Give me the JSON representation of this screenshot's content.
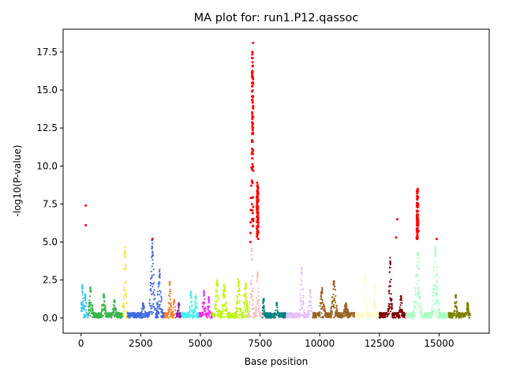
{
  "chart_data": {
    "type": "scatter",
    "title": "MA plot for: run1.P12.qassoc",
    "xlabel": "Base position",
    "ylabel": "-log10(P-value)",
    "xlim": [
      -750,
      17100
    ],
    "ylim": [
      -1.0,
      19.0
    ],
    "xticks": [
      0,
      2500,
      5000,
      7500,
      10000,
      12500,
      15000
    ],
    "xtick_labels": [
      "0",
      "2500",
      "5000",
      "7500",
      "10000",
      "12500",
      "15000"
    ],
    "yticks": [
      0.0,
      2.5,
      5.0,
      7.5,
      10.0,
      12.5,
      15.0,
      17.5
    ],
    "ytick_labels": [
      "0.0",
      "2.5",
      "5.0",
      "7.5",
      "10.0",
      "12.5",
      "15.0",
      "17.5"
    ],
    "grid": false,
    "legend": "none",
    "significant_color": "#ff0000",
    "series": [
      {
        "color": "#3ec8f0",
        "x0": 0,
        "x1": 300,
        "peaks": [
          [
            60,
            2.2
          ],
          [
            180,
            1.6
          ]
        ]
      },
      {
        "color": "#3cb44b",
        "x0": 300,
        "x1": 1750,
        "peaks": [
          [
            400,
            2.1
          ],
          [
            950,
            1.6
          ],
          [
            1400,
            1.2
          ]
        ]
      },
      {
        "color": "#ffe119",
        "x0": 1750,
        "x1": 1950,
        "peaks": [
          [
            1840,
            4.7
          ]
        ]
      },
      {
        "color": "#4169e1",
        "x0": 1950,
        "x1": 3500,
        "peaks": [
          [
            2990,
            5.2
          ],
          [
            3290,
            3.2
          ],
          [
            2600,
            1.0
          ]
        ]
      },
      {
        "color": "#f58231",
        "x0": 3500,
        "x1": 4000,
        "peaks": [
          [
            3720,
            2.5
          ],
          [
            3900,
            1.2
          ]
        ]
      },
      {
        "color": "#911eb4",
        "x0": 4000,
        "x1": 4200,
        "peaks": [
          [
            4100,
            1.0
          ]
        ]
      },
      {
        "color": "#46f0f0",
        "x0": 4200,
        "x1": 4950,
        "peaks": [
          [
            4600,
            1.8
          ],
          [
            4800,
            1.5
          ]
        ]
      },
      {
        "color": "#f032e6",
        "x0": 4950,
        "x1": 5500,
        "peaks": [
          [
            5150,
            1.8
          ],
          [
            5350,
            1.4
          ]
        ]
      },
      {
        "color": "#bcf60c",
        "x0": 5500,
        "x1": 7000,
        "peaks": [
          [
            5700,
            2.5
          ],
          [
            6000,
            2.2
          ],
          [
            6600,
            2.6
          ],
          [
            6900,
            2.3
          ]
        ]
      },
      {
        "color": "#fabebe",
        "x0": 7000,
        "x1": 7600,
        "peaks": [
          [
            7150,
            4.6
          ],
          [
            7400,
            3.2
          ]
        ]
      },
      {
        "color": "#008080",
        "x0": 7600,
        "x1": 8600,
        "peaks": [
          [
            7650,
            1.3
          ],
          [
            8200,
            1.0
          ]
        ]
      },
      {
        "color": "#e6beff",
        "x0": 8600,
        "x1": 9700,
        "peaks": [
          [
            9250,
            3.5
          ],
          [
            9600,
            2.0
          ]
        ]
      },
      {
        "color": "#9a6324",
        "x0": 9700,
        "x1": 11500,
        "peaks": [
          [
            10100,
            2.0
          ],
          [
            10600,
            2.5
          ],
          [
            11100,
            1.0
          ]
        ]
      },
      {
        "color": "#fffac8",
        "x0": 11500,
        "x1": 12500,
        "peaks": [
          [
            11900,
            2.7
          ],
          [
            12300,
            2.2
          ]
        ]
      },
      {
        "color": "#800000",
        "x0": 12500,
        "x1": 13600,
        "peaks": [
          [
            12950,
            4.0
          ],
          [
            13400,
            1.5
          ]
        ]
      },
      {
        "color": "#aaffc3",
        "x0": 13600,
        "x1": 15400,
        "peaks": [
          [
            14100,
            4.6
          ],
          [
            14850,
            4.9
          ]
        ]
      },
      {
        "color": "#808000",
        "x0": 15400,
        "x1": 16300,
        "peaks": [
          [
            15700,
            1.6
          ],
          [
            16200,
            1.0
          ]
        ]
      }
    ],
    "significant_points": [
      [
        200,
        7.4
      ],
      [
        200,
        6.1
      ],
      [
        7210,
        18.1
      ],
      [
        7180,
        17.5
      ],
      [
        7190,
        17.1
      ],
      [
        7200,
        16.6
      ],
      [
        7170,
        16.0
      ],
      [
        7205,
        15.5
      ],
      [
        7160,
        14.9
      ],
      [
        7185,
        14.3
      ],
      [
        7175,
        13.1
      ],
      [
        7195,
        12.2
      ],
      [
        7165,
        11.7
      ],
      [
        7150,
        10.8
      ],
      [
        7140,
        9.9
      ],
      [
        7130,
        8.7
      ],
      [
        7120,
        7.9
      ],
      [
        7110,
        7.1
      ],
      [
        7105,
        6.3
      ],
      [
        7100,
        5.6
      ],
      [
        7095,
        5.0
      ],
      [
        7380,
        8.9
      ],
      [
        7390,
        8.4
      ],
      [
        7400,
        7.8
      ],
      [
        7370,
        7.3
      ],
      [
        7410,
        6.6
      ],
      [
        7385,
        6.0
      ],
      [
        7395,
        5.5
      ],
      [
        7420,
        5.2
      ],
      [
        14100,
        8.5
      ],
      [
        14080,
        8.0
      ],
      [
        14120,
        7.5
      ],
      [
        14090,
        7.0
      ],
      [
        14110,
        6.6
      ],
      [
        14070,
        6.1
      ],
      [
        14130,
        5.7
      ],
      [
        14060,
        5.3
      ],
      [
        13250,
        6.5
      ],
      [
        13200,
        5.3
      ],
      [
        14900,
        5.2
      ],
      [
        2990,
        5.2
      ]
    ]
  }
}
